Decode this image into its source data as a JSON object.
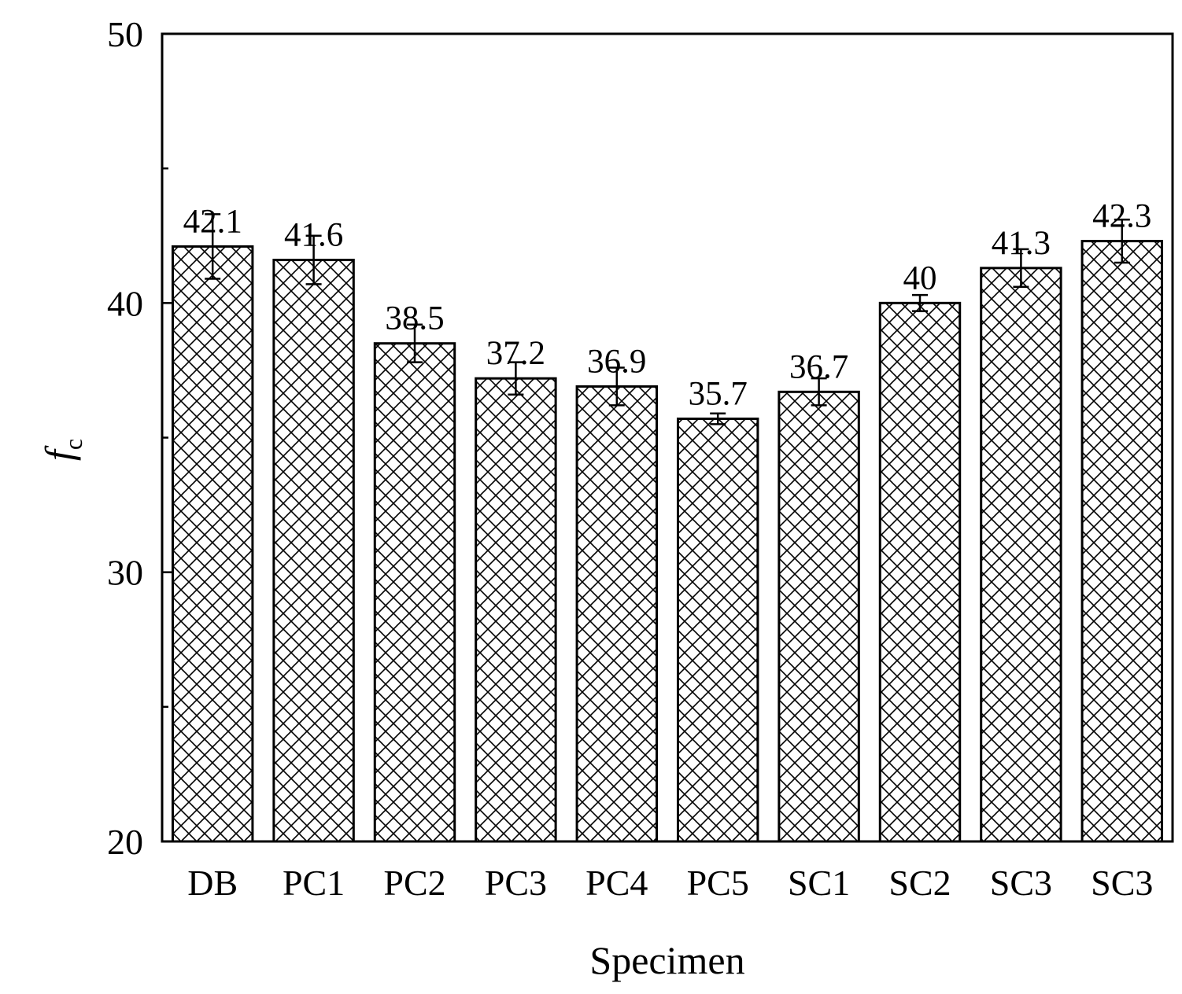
{
  "chart_data": {
    "type": "bar",
    "title": "",
    "xlabel": "Specimen",
    "ylabel": {
      "main": "f",
      "sub": "c"
    },
    "categories": [
      "DB",
      "PC1",
      "PC2",
      "PC3",
      "PC4",
      "PC5",
      "SC1",
      "SC2",
      "SC3",
      "SC3"
    ],
    "values": [
      42.1,
      41.6,
      38.5,
      37.2,
      36.9,
      35.7,
      36.7,
      40,
      41.3,
      42.3
    ],
    "value_labels": [
      "42.1",
      "41.6",
      "38.5",
      "37.2",
      "36.9",
      "35.7",
      "36.7",
      "40",
      "41.3",
      "42.3"
    ],
    "errors": [
      1.2,
      0.9,
      0.7,
      0.6,
      0.7,
      0.2,
      0.5,
      0.3,
      0.7,
      0.8
    ],
    "ylim": [
      20,
      50
    ],
    "yticks": [
      20,
      30,
      40,
      50
    ],
    "yminor": [
      25,
      35,
      45
    ],
    "grid": false,
    "bar_fill": "crosshatch",
    "colors": {
      "bar_stroke": "#000000",
      "hatch": "#000000",
      "background": "#ffffff"
    }
  }
}
